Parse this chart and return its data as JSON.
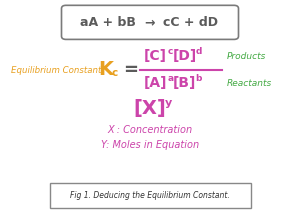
{
  "bg_color": "#ffffff",
  "equation_box_color": "#7a7a7a",
  "equation_text_color": "#5b5b5b",
  "eq_label": "Equilibrium Constant",
  "eq_label_color": "#e8a020",
  "Kc_color": "#e8a020",
  "equal_color": "#5b5b5b",
  "numerator_color": "#cc44aa",
  "denominator_color": "#cc44aa",
  "products_label": "Products",
  "products_color": "#44aa44",
  "reactants_label": "Reactants",
  "reactants_color": "#44aa44",
  "Xy_color": "#cc44aa",
  "annotation_color": "#cc44aa",
  "annotation_line1": "X : Concentration",
  "annotation_line2": "Y: Moles in Equation",
  "caption": "Fig 1. Deducing the Equilibrium Constant.",
  "caption_color": "#333333",
  "fraction_color": "#cc44aa"
}
